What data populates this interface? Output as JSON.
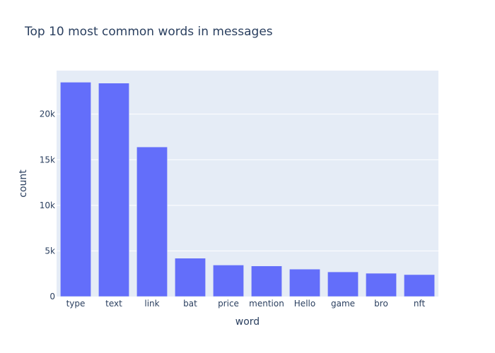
{
  "chart_data": {
    "type": "bar",
    "title": "Top 10 most common words in messages",
    "xlabel": "word",
    "ylabel": "count",
    "categories": [
      "type",
      "text",
      "link",
      "bat",
      "price",
      "mention",
      "Hello",
      "game",
      "bro",
      "nft"
    ],
    "values": [
      23500,
      23400,
      16400,
      4200,
      3450,
      3350,
      3000,
      2700,
      2550,
      2400
    ],
    "ylim": [
      0,
      24775
    ],
    "yticks": [
      0,
      5000,
      10000,
      15000,
      20000
    ],
    "ytick_labels": [
      "0",
      "5k",
      "10k",
      "15k",
      "20k"
    ],
    "grid": true,
    "colors": {
      "bar": "#636efa",
      "plot_bg": "#e5ecf6",
      "gridline": "#ffffff",
      "text": "#2a3f5f"
    }
  }
}
